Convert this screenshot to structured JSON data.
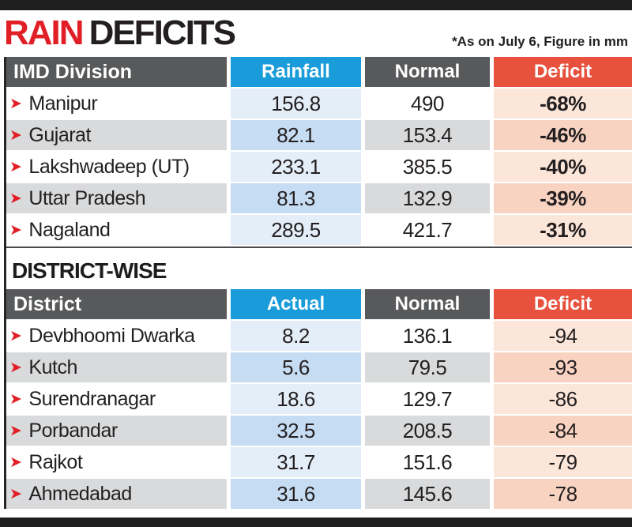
{
  "header": {
    "title_red": "RAIN",
    "title_black": "DEFICITS",
    "note": "*As on July 6, Figure in mm"
  },
  "icons": {
    "arrow": "➤"
  },
  "imd_table": {
    "headers": [
      "IMD Division",
      "Rainfall",
      "Normal",
      "Deficit"
    ],
    "rows": [
      {
        "name": "Manipur",
        "rainfall": "156.8",
        "normal": "490",
        "deficit": "-68%"
      },
      {
        "name": "Gujarat",
        "rainfall": "82.1",
        "normal": "153.4",
        "deficit": "-46%"
      },
      {
        "name": "Lakshwadeep (UT)",
        "rainfall": "233.1",
        "normal": "385.5",
        "deficit": "-40%"
      },
      {
        "name": "Uttar Pradesh",
        "rainfall": "81.3",
        "normal": "132.9",
        "deficit": "-39%"
      },
      {
        "name": "Nagaland",
        "rainfall": "289.5",
        "normal": "421.7",
        "deficit": "-31%"
      }
    ]
  },
  "district_section": {
    "title": "DISTRICT-WISE"
  },
  "district_table": {
    "headers": [
      "District",
      "Actual",
      "Normal",
      "Deficit"
    ],
    "rows": [
      {
        "name": "Devbhoomi Dwarka",
        "actual": "8.2",
        "normal": "136.1",
        "deficit": "-94"
      },
      {
        "name": "Kutch",
        "actual": "5.6",
        "normal": "79.5",
        "deficit": "-93"
      },
      {
        "name": "Surendranagar",
        "actual": "18.6",
        "normal": "129.7",
        "deficit": "-86"
      },
      {
        "name": "Porbandar",
        "actual": "32.5",
        "normal": "208.5",
        "deficit": "-84"
      },
      {
        "name": "Rajkot",
        "actual": "31.7",
        "normal": "151.6",
        "deficit": "-79"
      },
      {
        "name": "Ahmedabad",
        "actual": "31.6",
        "normal": "145.6",
        "deficit": "-78"
      }
    ]
  },
  "colors": {
    "accent_red": "#e11f26",
    "header_gray": "#58595b",
    "header_blue": "#199cd9",
    "header_orange": "#e8513d",
    "row_alt_gray": "#d9dadb",
    "rainfall_cell_light": "#e4eef8",
    "rainfall_cell_dark": "#c6dcf2",
    "deficit_cell_light": "#fce6da",
    "deficit_cell_dark": "#f9d3c2"
  },
  "chart_data": [
    {
      "type": "table",
      "title": "RAIN DEFICITS",
      "subtitle": "*As on July 6, Figure in mm",
      "columns": [
        "IMD Division",
        "Rainfall",
        "Normal",
        "Deficit"
      ],
      "rows": [
        [
          "Manipur",
          156.8,
          490,
          "-68%"
        ],
        [
          "Gujarat",
          82.1,
          153.4,
          "-46%"
        ],
        [
          "Lakshwadeep (UT)",
          233.1,
          385.5,
          "-40%"
        ],
        [
          "Uttar Pradesh",
          81.3,
          132.9,
          "-39%"
        ],
        [
          "Nagaland",
          289.5,
          421.7,
          "-31%"
        ]
      ]
    },
    {
      "type": "table",
      "title": "DISTRICT-WISE",
      "columns": [
        "District",
        "Actual",
        "Normal",
        "Deficit"
      ],
      "rows": [
        [
          "Devbhoomi Dwarka",
          8.2,
          136.1,
          -94
        ],
        [
          "Kutch",
          5.6,
          79.5,
          -93
        ],
        [
          "Surendranagar",
          18.6,
          129.7,
          -86
        ],
        [
          "Porbandar",
          32.5,
          208.5,
          -84
        ],
        [
          "Rajkot",
          31.7,
          151.6,
          -79
        ],
        [
          "Ahmedabad",
          31.6,
          145.6,
          -78
        ]
      ]
    }
  ]
}
